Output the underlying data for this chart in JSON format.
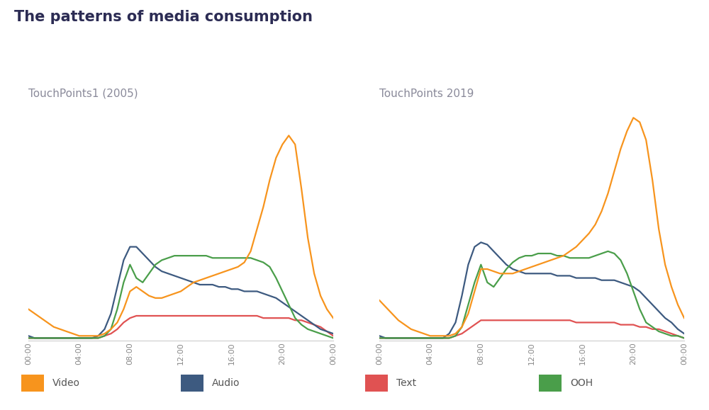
{
  "title": "The patterns of media consumption",
  "subtitle_left": "TouchPoints1 (2005)",
  "subtitle_right": "TouchPoints 2019",
  "title_color": "#2c2c54",
  "subtitle_color": "#8a8a9a",
  "background_color": "#ffffff",
  "colors": {
    "video": "#f7941d",
    "audio": "#3d5a80",
    "text": "#e05252",
    "ooh": "#4a9e4a"
  },
  "x_ticks": [
    "00:00",
    "04:00",
    "08:00",
    "12:00",
    "16:00",
    "20:00",
    "00:00"
  ],
  "left2005": {
    "video": [
      14,
      12,
      10,
      8,
      6,
      5,
      4,
      3,
      2,
      2,
      2,
      2,
      3,
      5,
      8,
      14,
      22,
      24,
      22,
      20,
      19,
      19,
      20,
      21,
      22,
      24,
      26,
      27,
      28,
      29,
      30,
      31,
      32,
      33,
      35,
      40,
      50,
      60,
      72,
      82,
      88,
      92,
      88,
      68,
      46,
      30,
      20,
      14,
      10
    ],
    "audio": [
      2,
      1,
      1,
      1,
      1,
      1,
      1,
      1,
      1,
      1,
      1,
      2,
      5,
      12,
      24,
      36,
      42,
      42,
      39,
      36,
      33,
      31,
      30,
      29,
      28,
      27,
      26,
      25,
      25,
      25,
      24,
      24,
      23,
      23,
      22,
      22,
      22,
      21,
      20,
      19,
      17,
      15,
      13,
      11,
      9,
      7,
      5,
      4,
      3
    ],
    "text": [
      1,
      1,
      1,
      1,
      1,
      1,
      1,
      1,
      1,
      1,
      1,
      1,
      2,
      3,
      5,
      8,
      10,
      11,
      11,
      11,
      11,
      11,
      11,
      11,
      11,
      11,
      11,
      11,
      11,
      11,
      11,
      11,
      11,
      11,
      11,
      11,
      11,
      10,
      10,
      10,
      10,
      10,
      9,
      9,
      8,
      7,
      6,
      4,
      2
    ],
    "ooh": [
      1,
      1,
      1,
      1,
      1,
      1,
      1,
      1,
      1,
      1,
      1,
      1,
      2,
      5,
      14,
      26,
      34,
      28,
      26,
      30,
      34,
      36,
      37,
      38,
      38,
      38,
      38,
      38,
      38,
      37,
      37,
      37,
      37,
      37,
      37,
      37,
      36,
      35,
      33,
      28,
      22,
      16,
      10,
      7,
      5,
      4,
      3,
      2,
      1
    ]
  },
  "right2019": {
    "video": [
      18,
      15,
      12,
      9,
      7,
      5,
      4,
      3,
      2,
      2,
      2,
      2,
      3,
      6,
      12,
      22,
      32,
      32,
      31,
      30,
      30,
      30,
      31,
      32,
      33,
      34,
      35,
      36,
      37,
      38,
      40,
      42,
      45,
      48,
      52,
      58,
      66,
      76,
      86,
      94,
      100,
      98,
      90,
      72,
      50,
      34,
      24,
      16,
      10
    ],
    "audio": [
      2,
      1,
      1,
      1,
      1,
      1,
      1,
      1,
      1,
      1,
      1,
      3,
      8,
      20,
      34,
      42,
      44,
      43,
      40,
      37,
      34,
      32,
      31,
      30,
      30,
      30,
      30,
      30,
      29,
      29,
      29,
      28,
      28,
      28,
      28,
      27,
      27,
      27,
      26,
      25,
      24,
      22,
      19,
      16,
      13,
      10,
      8,
      5,
      3
    ],
    "text": [
      1,
      1,
      1,
      1,
      1,
      1,
      1,
      1,
      1,
      1,
      1,
      1,
      2,
      3,
      5,
      7,
      9,
      9,
      9,
      9,
      9,
      9,
      9,
      9,
      9,
      9,
      9,
      9,
      9,
      9,
      9,
      8,
      8,
      8,
      8,
      8,
      8,
      8,
      7,
      7,
      7,
      6,
      6,
      5,
      5,
      4,
      3,
      2,
      1
    ],
    "ooh": [
      1,
      1,
      1,
      1,
      1,
      1,
      1,
      1,
      1,
      1,
      1,
      1,
      2,
      6,
      16,
      26,
      34,
      26,
      24,
      28,
      32,
      35,
      37,
      38,
      38,
      39,
      39,
      39,
      38,
      38,
      37,
      37,
      37,
      37,
      38,
      39,
      40,
      39,
      36,
      30,
      22,
      14,
      8,
      6,
      4,
      3,
      2,
      2,
      1
    ]
  }
}
